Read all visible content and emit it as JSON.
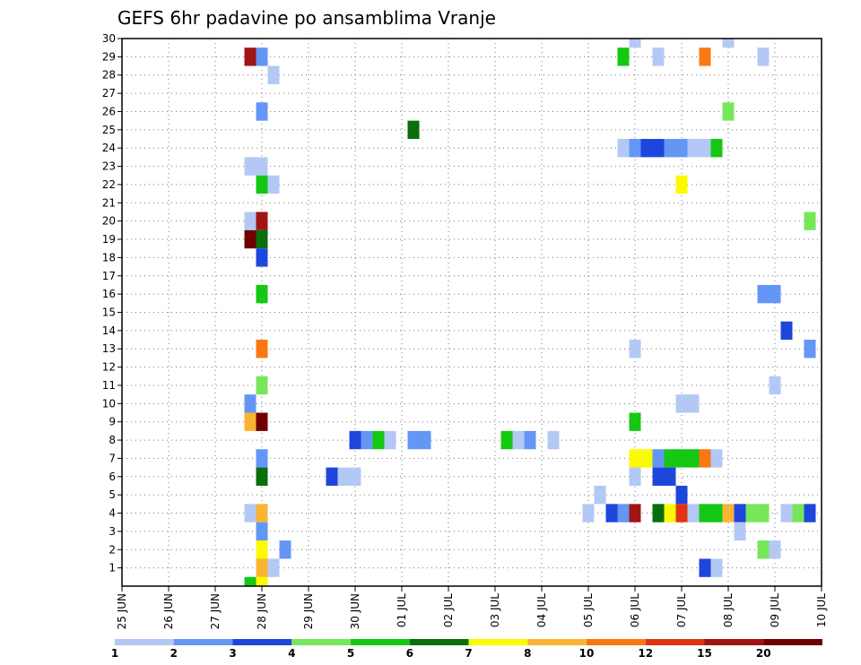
{
  "chart_data": {
    "type": "heatmap",
    "title": "GEFS 6hr padavine po ansamblima Vranje",
    "x_ticks": [
      "25 JUN",
      "26 JUN",
      "27 JUN",
      "28 JUN",
      "29 JUN",
      "30 JUN",
      "01 JUL",
      "02 JUL",
      "03 JUL",
      "04 JUL",
      "05 JUL",
      "06 JUL",
      "07 JUL",
      "08 JUL",
      "09 JUL",
      "10 JUL"
    ],
    "x_unit": "day offset from 25 JUN 00z (6-hour steps)",
    "y_ticks": [
      1,
      2,
      3,
      4,
      5,
      6,
      7,
      8,
      9,
      10,
      11,
      12,
      13,
      14,
      15,
      16,
      17,
      18,
      19,
      20,
      21,
      22,
      23,
      24,
      25,
      26,
      27,
      28,
      29,
      30
    ],
    "ylim": [
      0,
      30
    ],
    "xlim": [
      0,
      15
    ],
    "grid": true,
    "legend": {
      "placement": "bottom",
      "levels": [
        1,
        2,
        3,
        4,
        5,
        6,
        7,
        8,
        10,
        12,
        15,
        20
      ],
      "colors": [
        "#b4c8f5",
        "#6496f5",
        "#1e46dc",
        "#78e65a",
        "#14c814",
        "#0a6e0a",
        "#fafa00",
        "#fab432",
        "#fa7814",
        "#e13214",
        "#a01414",
        "#6e0000"
      ]
    },
    "cells": [
      {
        "d": 2.75,
        "m": 29,
        "c": 10
      },
      {
        "d": 3.0,
        "m": 29,
        "c": 1
      },
      {
        "d": 3.25,
        "m": 28,
        "c": 0
      },
      {
        "d": 3.0,
        "m": 26,
        "c": 1
      },
      {
        "d": 2.75,
        "m": 23,
        "c": 0
      },
      {
        "d": 3.0,
        "m": 23,
        "c": 0
      },
      {
        "d": 3.0,
        "m": 22,
        "c": 4
      },
      {
        "d": 3.25,
        "m": 22,
        "c": 0
      },
      {
        "d": 2.75,
        "m": 20,
        "c": 0
      },
      {
        "d": 3.0,
        "m": 20,
        "c": 10
      },
      {
        "d": 2.75,
        "m": 19,
        "c": 11
      },
      {
        "d": 3.0,
        "m": 19,
        "c": 5
      },
      {
        "d": 3.0,
        "m": 18,
        "c": 2
      },
      {
        "d": 3.0,
        "m": 16,
        "c": 4
      },
      {
        "d": 3.0,
        "m": 13,
        "c": 8
      },
      {
        "d": 3.0,
        "m": 11,
        "c": 3
      },
      {
        "d": 2.75,
        "m": 10,
        "c": 1
      },
      {
        "d": 2.75,
        "m": 9,
        "c": 7
      },
      {
        "d": 3.0,
        "m": 9,
        "c": 11
      },
      {
        "d": 3.0,
        "m": 7,
        "c": 1
      },
      {
        "d": 3.0,
        "m": 6,
        "c": 5
      },
      {
        "d": 2.75,
        "m": 4,
        "c": 0
      },
      {
        "d": 3.0,
        "m": 4,
        "c": 7
      },
      {
        "d": 3.0,
        "m": 3,
        "c": 1
      },
      {
        "d": 3.0,
        "m": 2,
        "c": 6
      },
      {
        "d": 3.0,
        "m": 1,
        "c": 7
      },
      {
        "d": 3.25,
        "m": 1,
        "c": 0
      },
      {
        "d": 2.75,
        "m": 0,
        "c": 4
      },
      {
        "d": 3.0,
        "m": 0,
        "c": 6
      },
      {
        "d": 3.5,
        "m": 2,
        "c": 1
      },
      {
        "d": 6.25,
        "m": 25,
        "c": 5
      },
      {
        "d": 4.5,
        "m": 6,
        "c": 2
      },
      {
        "d": 4.75,
        "m": 6,
        "c": 0
      },
      {
        "d": 5.0,
        "m": 6,
        "c": 0
      },
      {
        "d": 5.0,
        "m": 8,
        "c": 2
      },
      {
        "d": 5.25,
        "m": 8,
        "c": 1
      },
      {
        "d": 5.5,
        "m": 8,
        "c": 4
      },
      {
        "d": 5.75,
        "m": 8,
        "c": 0
      },
      {
        "d": 6.25,
        "m": 8,
        "c": 1
      },
      {
        "d": 6.5,
        "m": 8,
        "c": 1
      },
      {
        "d": 8.25,
        "m": 8,
        "c": 4
      },
      {
        "d": 8.5,
        "m": 8,
        "c": 0
      },
      {
        "d": 8.75,
        "m": 8,
        "c": 1
      },
      {
        "d": 9.25,
        "m": 8,
        "c": 0
      },
      {
        "d": 10.75,
        "m": 24,
        "c": 0
      },
      {
        "d": 11.0,
        "m": 24,
        "c": 1
      },
      {
        "d": 11.25,
        "m": 24,
        "c": 2
      },
      {
        "d": 11.5,
        "m": 24,
        "c": 2
      },
      {
        "d": 11.75,
        "m": 24,
        "c": 1
      },
      {
        "d": 12.0,
        "m": 24,
        "c": 1
      },
      {
        "d": 12.25,
        "m": 24,
        "c": 0
      },
      {
        "d": 12.5,
        "m": 24,
        "c": 0
      },
      {
        "d": 12.75,
        "m": 24,
        "c": 4
      },
      {
        "d": 11.0,
        "m": 30,
        "c": 0
      },
      {
        "d": 13.0,
        "m": 30,
        "c": 0
      },
      {
        "d": 10.75,
        "m": 29,
        "c": 4
      },
      {
        "d": 11.5,
        "m": 29,
        "c": 0
      },
      {
        "d": 12.5,
        "m": 29,
        "c": 8
      },
      {
        "d": 13.75,
        "m": 29,
        "c": 0
      },
      {
        "d": 13.0,
        "m": 26,
        "c": 3
      },
      {
        "d": 12.0,
        "m": 22,
        "c": 6
      },
      {
        "d": 14.75,
        "m": 20,
        "c": 3
      },
      {
        "d": 13.75,
        "m": 16,
        "c": 1
      },
      {
        "d": 14.0,
        "m": 16,
        "c": 1
      },
      {
        "d": 14.25,
        "m": 14,
        "c": 2
      },
      {
        "d": 11.0,
        "m": 13,
        "c": 0
      },
      {
        "d": 14.75,
        "m": 13,
        "c": 1
      },
      {
        "d": 14.0,
        "m": 11,
        "c": 0
      },
      {
        "d": 12.0,
        "m": 10,
        "c": 0
      },
      {
        "d": 12.25,
        "m": 10,
        "c": 0
      },
      {
        "d": 11.0,
        "m": 9,
        "c": 4
      },
      {
        "d": 11.0,
        "m": 7,
        "c": 6
      },
      {
        "d": 11.25,
        "m": 7,
        "c": 6
      },
      {
        "d": 11.5,
        "m": 7,
        "c": 1
      },
      {
        "d": 11.75,
        "m": 7,
        "c": 4
      },
      {
        "d": 12.0,
        "m": 7,
        "c": 4
      },
      {
        "d": 12.25,
        "m": 7,
        "c": 4
      },
      {
        "d": 12.5,
        "m": 7,
        "c": 8
      },
      {
        "d": 12.75,
        "m": 7,
        "c": 0
      },
      {
        "d": 11.0,
        "m": 6,
        "c": 0
      },
      {
        "d": 11.5,
        "m": 6,
        "c": 2
      },
      {
        "d": 11.75,
        "m": 6,
        "c": 2
      },
      {
        "d": 10.25,
        "m": 5,
        "c": 0
      },
      {
        "d": 12.0,
        "m": 5,
        "c": 2
      },
      {
        "d": 10.0,
        "m": 4,
        "c": 0
      },
      {
        "d": 10.5,
        "m": 4,
        "c": 2
      },
      {
        "d": 10.75,
        "m": 4,
        "c": 1
      },
      {
        "d": 11.0,
        "m": 4,
        "c": 10
      },
      {
        "d": 11.5,
        "m": 4,
        "c": 5
      },
      {
        "d": 11.75,
        "m": 4,
        "c": 6
      },
      {
        "d": 12.0,
        "m": 4,
        "c": 9
      },
      {
        "d": 12.25,
        "m": 4,
        "c": 0
      },
      {
        "d": 12.5,
        "m": 4,
        "c": 4
      },
      {
        "d": 12.75,
        "m": 4,
        "c": 4
      },
      {
        "d": 13.0,
        "m": 4,
        "c": 7
      },
      {
        "d": 13.25,
        "m": 4,
        "c": 2
      },
      {
        "d": 13.5,
        "m": 4,
        "c": 3
      },
      {
        "d": 13.75,
        "m": 4,
        "c": 3
      },
      {
        "d": 14.25,
        "m": 4,
        "c": 0
      },
      {
        "d": 14.5,
        "m": 4,
        "c": 3
      },
      {
        "d": 14.75,
        "m": 4,
        "c": 2
      },
      {
        "d": 13.25,
        "m": 3,
        "c": 0
      },
      {
        "d": 13.75,
        "m": 2,
        "c": 3
      },
      {
        "d": 14.0,
        "m": 2,
        "c": 0
      },
      {
        "d": 12.5,
        "m": 1,
        "c": 2
      },
      {
        "d": 12.75,
        "m": 1,
        "c": 0
      }
    ]
  }
}
